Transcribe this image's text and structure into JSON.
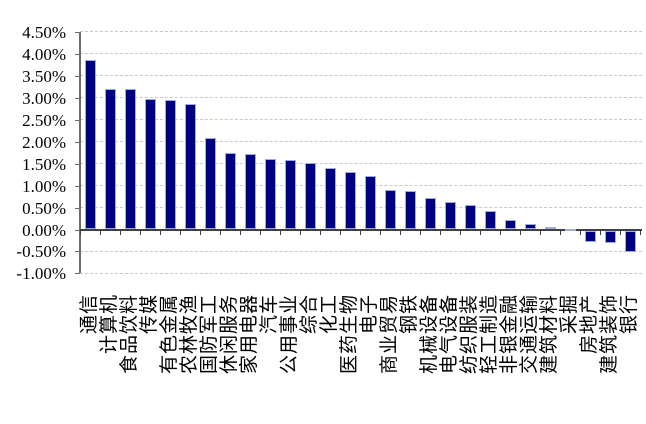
{
  "chart_data": {
    "type": "bar",
    "title": "",
    "xlabel": "",
    "ylabel": "",
    "unit": "%",
    "categories": [
      "通信",
      "计算机",
      "食品饮料",
      "传媒",
      "有色金属",
      "农林牧渔",
      "国防军工",
      "休闲服务",
      "家用电器",
      "汽车",
      "公用事业",
      "综合",
      "化工",
      "医药生物",
      "电子",
      "商业贸易",
      "钢铁",
      "机械设备",
      "电气设备",
      "纺织服装",
      "轻工制造",
      "非银金融",
      "交通运输",
      "建筑材料",
      "采掘",
      "房地产",
      "建筑装饰",
      "银行"
    ],
    "values": [
      3.85,
      3.21,
      3.19,
      2.98,
      2.95,
      2.87,
      2.08,
      1.74,
      1.71,
      1.6,
      1.58,
      1.52,
      1.4,
      1.32,
      1.22,
      0.9,
      0.88,
      0.71,
      0.63,
      0.55,
      0.42,
      0.22,
      0.13,
      0.05,
      0.02,
      -0.26,
      -0.28,
      -0.48
    ],
    "ylim": [
      -1.0,
      4.5
    ],
    "y_tick_step": 0.5,
    "y_tick_labels": [
      "4.50%",
      "4.00%",
      "3.50%",
      "3.00%",
      "2.50%",
      "2.00%",
      "1.50%",
      "1.00%",
      "0.50%",
      "0.00%",
      "-0.50%",
      "-1.00%"
    ],
    "grid": true,
    "legend": false,
    "x_labels_rotated_degrees": -90,
    "colors": {
      "bar_fill": "#000080",
      "bar_border": "#9FAED8",
      "gridline": "#C9C9C9",
      "axis_line": "#404040",
      "value_axis_line": "#6B6B6B",
      "text": "#000000",
      "background": "#FFFFFF"
    }
  }
}
